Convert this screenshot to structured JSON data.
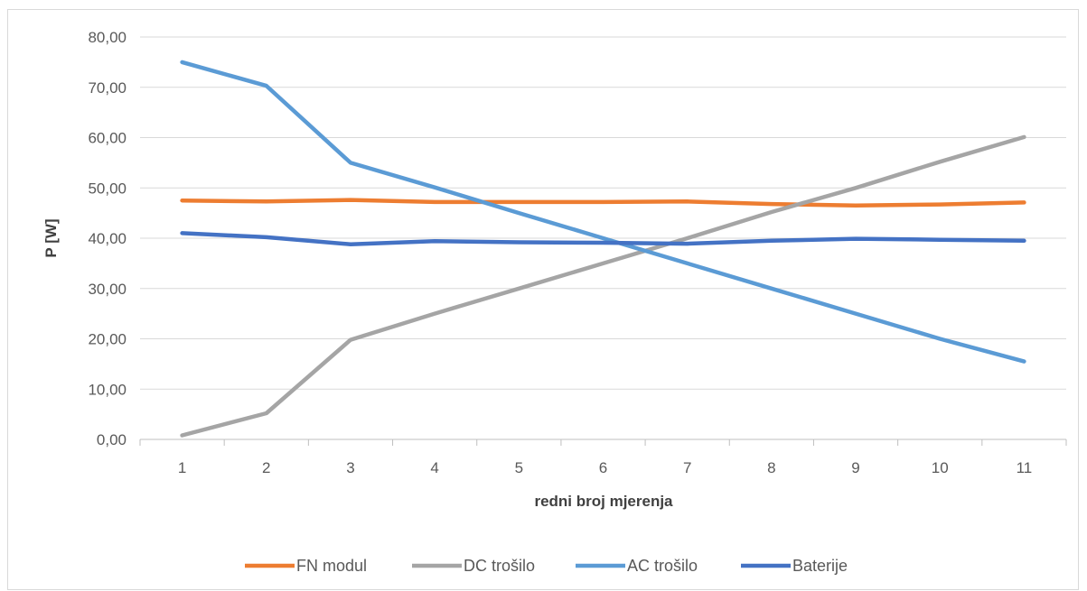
{
  "chart_data": {
    "type": "line",
    "title": "",
    "xlabel": "redni broj mjerenja",
    "ylabel": "P [W]",
    "categories": [
      "1",
      "2",
      "3",
      "4",
      "5",
      "6",
      "7",
      "8",
      "9",
      "10",
      "11"
    ],
    "yticks": [
      "0,00",
      "10,00",
      "20,00",
      "30,00",
      "40,00",
      "50,00",
      "60,00",
      "70,00",
      "80,00"
    ],
    "ylim": [
      0,
      80
    ],
    "grid": true,
    "legend_position": "bottom",
    "series": [
      {
        "name": "FN modul",
        "color": "#ed7d31",
        "values": [
          47.5,
          47.3,
          47.6,
          47.2,
          47.2,
          47.2,
          47.3,
          46.8,
          46.5,
          46.7,
          47.1
        ]
      },
      {
        "name": "DC trošilo",
        "color": "#a5a5a5",
        "values": [
          0.8,
          5.2,
          19.8,
          25.0,
          30.0,
          35.0,
          40.0,
          45.2,
          50.0,
          55.2,
          60.1
        ]
      },
      {
        "name": "AC trošilo",
        "color": "#5b9bd5",
        "values": [
          75.0,
          70.3,
          55.0,
          50.1,
          45.0,
          40.0,
          35.0,
          30.0,
          25.0,
          20.0,
          15.5
        ]
      },
      {
        "name": "Baterije",
        "color": "#4472c4",
        "values": [
          41.0,
          40.2,
          38.8,
          39.4,
          39.2,
          39.1,
          38.9,
          39.5,
          39.9,
          39.7,
          39.5
        ]
      }
    ]
  }
}
